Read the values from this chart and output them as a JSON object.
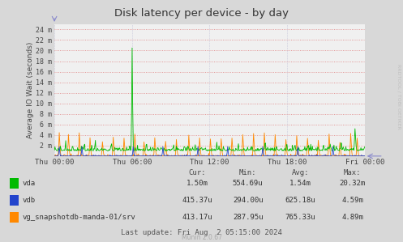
{
  "title": "Disk latency per device - by day",
  "ylabel": "Average IO Wait (seconds)",
  "background_color": "#d8d8d8",
  "plot_background_color": "#f0f0f0",
  "grid_color_h": "#e08080",
  "grid_color_v": "#aaaacc",
  "series": [
    {
      "name": "vda",
      "color": "#00bb00"
    },
    {
      "name": "vdb",
      "color": "#2244cc"
    },
    {
      "name": "vg_snapshotdb-manda-01/srv",
      "color": "#ff8800"
    }
  ],
  "x_tick_labels": [
    "Thu 00:00",
    "Thu 06:00",
    "Thu 12:00",
    "Thu 18:00",
    "Fri 00:00"
  ],
  "y_tick_labels": [
    "2 m",
    "4 m",
    "6 m",
    "8 m",
    "10 m",
    "12 m",
    "14 m",
    "16 m",
    "18 m",
    "20 m",
    "22 m",
    "24 m"
  ],
  "y_tick_values": [
    2,
    4,
    6,
    8,
    10,
    12,
    14,
    16,
    18,
    20,
    22,
    24
  ],
  "ylim": [
    0,
    25
  ],
  "stats_header": [
    "Cur:",
    "Min:",
    "Avg:",
    "Max:"
  ],
  "stats": [
    [
      "1.50m",
      "554.69u",
      "1.54m",
      "20.32m"
    ],
    [
      "415.37u",
      "294.00u",
      "625.18u",
      "4.59m"
    ],
    [
      "413.17u",
      "287.95u",
      "765.33u",
      "4.89m"
    ]
  ],
  "last_update": "Last update: Fri Aug  2 05:15:00 2024",
  "munin_version": "Munin 2.0.67",
  "watermark": "RRDTOOL / TOBI OETIKER"
}
